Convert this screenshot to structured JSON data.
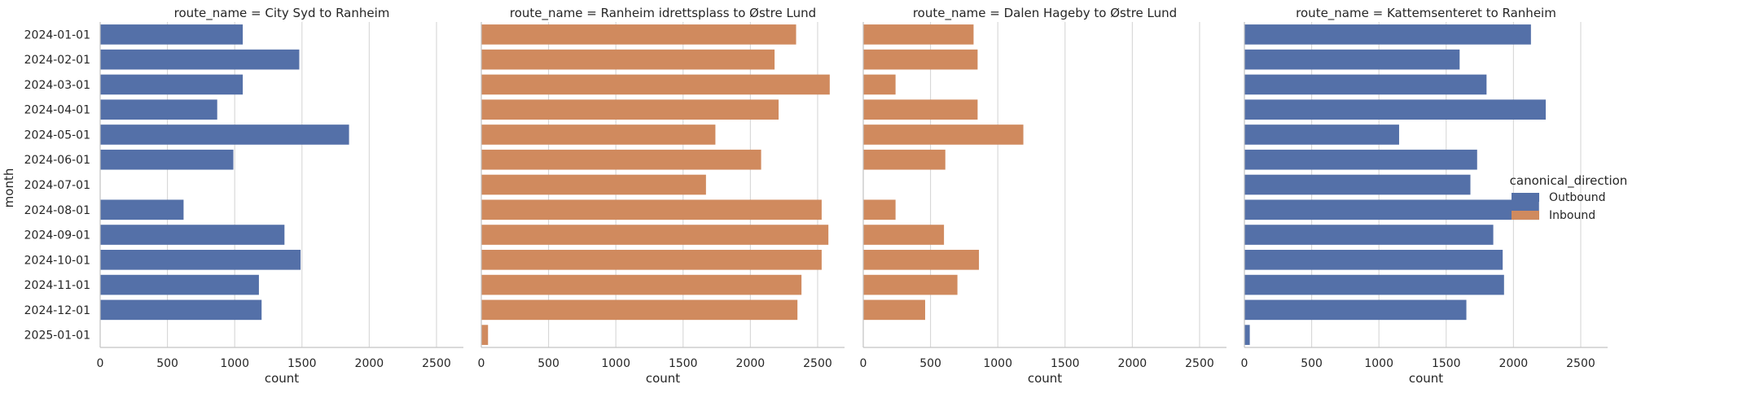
{
  "chart_data": {
    "type": "bar",
    "orientation": "horizontal",
    "facet_variable": "route_name",
    "ylabel": "month",
    "xlabel": "count",
    "xlim": [
      0,
      2700
    ],
    "xticks": [
      "0",
      "500",
      "1000",
      "1500",
      "2000",
      "2500"
    ],
    "grid": "vertical",
    "categories": [
      "2024-01-01",
      "2024-02-01",
      "2024-03-01",
      "2024-04-01",
      "2024-05-01",
      "2024-06-01",
      "2024-07-01",
      "2024-08-01",
      "2024-09-01",
      "2024-10-01",
      "2024-11-01",
      "2024-12-01",
      "2025-01-01"
    ],
    "legend": {
      "title": "canonical_direction",
      "placement": "right",
      "entries": [
        {
          "label": "Outbound",
          "color": "#5470a8"
        },
        {
          "label": "Inbound",
          "color": "#d08a5e"
        }
      ]
    },
    "panels": [
      {
        "title": "route_name = City Syd to Ranheim",
        "direction": "Outbound",
        "color": "#5470a8",
        "values": [
          1060,
          1480,
          1060,
          870,
          1850,
          990,
          null,
          620,
          1370,
          1490,
          1180,
          1200,
          null
        ]
      },
      {
        "title": "route_name = Ranheim idrettsplass to Østre Lund",
        "direction": "Inbound",
        "color": "#d08a5e",
        "values": [
          2340,
          2180,
          2590,
          2210,
          1740,
          2080,
          1670,
          2530,
          2580,
          2530,
          2380,
          2350,
          50
        ]
      },
      {
        "title": "route_name = Dalen Hageby to Østre Lund",
        "direction": "Inbound",
        "color": "#d08a5e",
        "values": [
          820,
          850,
          240,
          850,
          1190,
          610,
          null,
          240,
          600,
          860,
          700,
          460,
          null
        ]
      },
      {
        "title": "route_name = Kattemsenteret to Ranheim",
        "direction": "Outbound",
        "color": "#5470a8",
        "values": [
          2130,
          1600,
          1800,
          2240,
          1150,
          1730,
          1680,
          2190,
          1850,
          1920,
          1930,
          1650,
          40
        ]
      }
    ]
  }
}
